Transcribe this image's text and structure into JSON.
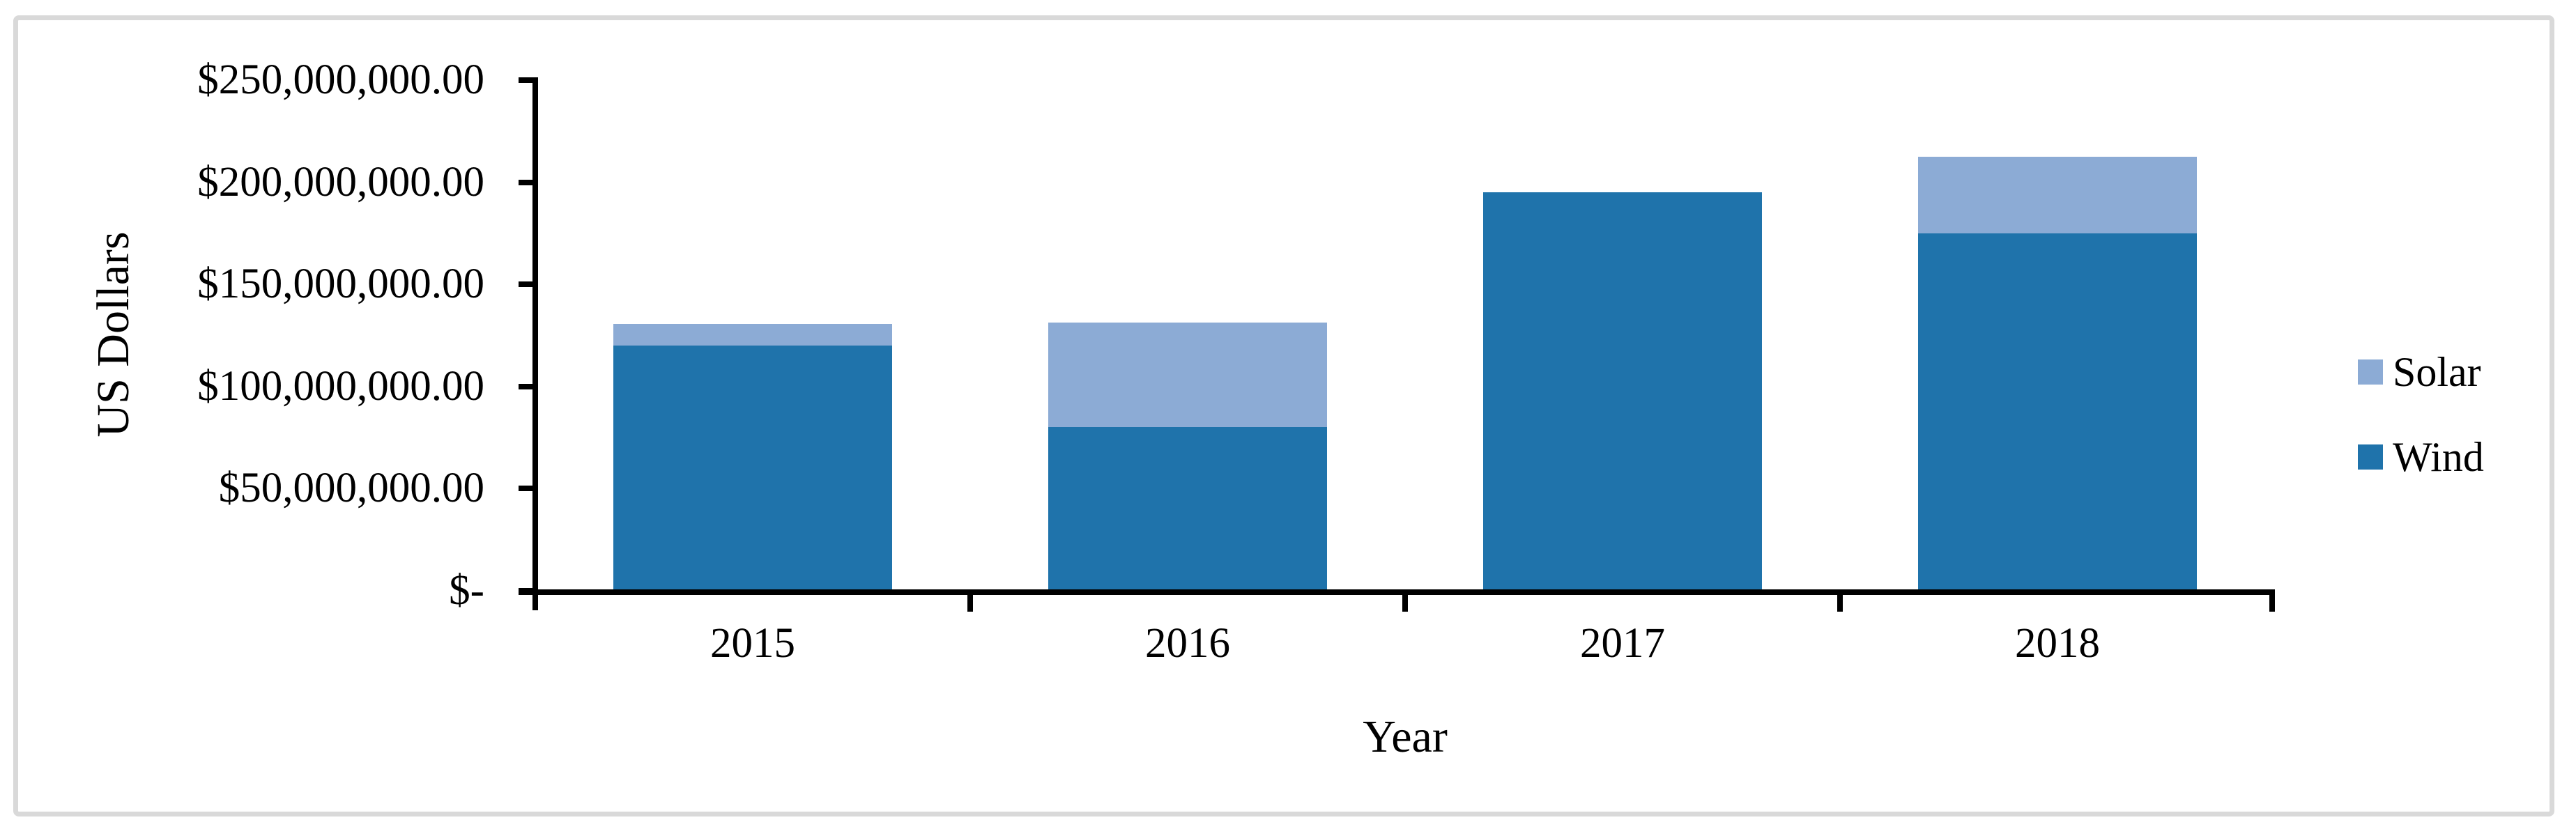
{
  "figure": {
    "background": "#ffffff",
    "border_color": "#d9d9d9",
    "axis_color": "#000000",
    "text_color": "#000000"
  },
  "chart_data": {
    "type": "bar",
    "stacked": true,
    "title": "",
    "categories": [
      "2015",
      "2016",
      "2017",
      "2018"
    ],
    "series": [
      {
        "name": "Wind",
        "color": "#1f73ab",
        "values": [
          120000000,
          80000000,
          195000000,
          175000000
        ]
      },
      {
        "name": "Solar",
        "color": "#8cabd5",
        "values": [
          10500000,
          51000000,
          0,
          37500000
        ]
      }
    ],
    "xlabel": "Year",
    "ylabel": "US Dollars",
    "ylim": [
      0,
      250000000
    ],
    "y_tick_interval": 50000000,
    "y_tick_labels": [
      "$250,000,000.00",
      "$200,000,000.00",
      "$150,000,000.00",
      "$100,000,000.00",
      "$50,000,000.00",
      "$-"
    ],
    "grid": false,
    "legend_position": "right",
    "legend": [
      "Solar",
      "Wind"
    ]
  }
}
